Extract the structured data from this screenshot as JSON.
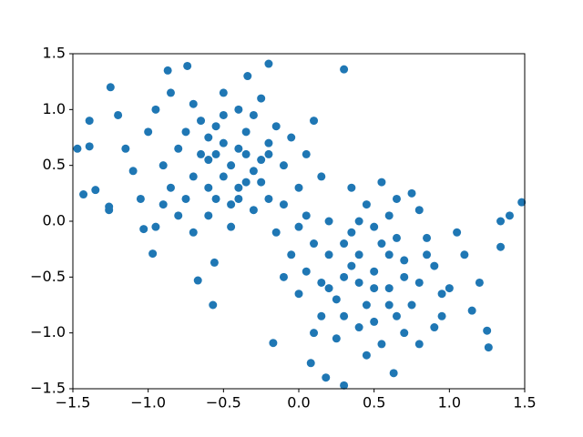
{
  "chart_data": {
    "type": "scatter",
    "color": "#1f77b4",
    "x": [
      -1.47,
      -1.39,
      -1.43,
      -1.35,
      -1.39,
      -1.25,
      -0.87,
      -0.74,
      -0.2,
      0.3,
      -0.34,
      1.48,
      1.4,
      1.34,
      1.34,
      1.25,
      1.26,
      0.3,
      0.18,
      0.63,
      0.08,
      -0.57,
      -0.17,
      -0.56,
      -0.67,
      -0.97,
      -1.03,
      -1.26,
      -1.26,
      -0.45,
      -0.6,
      -0.3,
      -0.5,
      -0.4,
      -0.7,
      -0.2,
      -0.55,
      -0.35,
      -0.8,
      -0.65,
      -0.25,
      -0.1,
      -0.9,
      -0.5,
      -0.75,
      -0.3,
      -0.6,
      -0.4,
      -1.0,
      -1.1,
      -0.85,
      -0.15,
      0.0,
      -0.05,
      -0.7,
      -0.95,
      -0.45,
      -0.2,
      -0.6,
      -0.35,
      -0.5,
      -0.8,
      -1.05,
      -0.25,
      -0.1,
      0.05,
      -0.65,
      -0.4,
      -0.55,
      -0.3,
      -0.75,
      -0.9,
      -1.15,
      -0.45,
      0.1,
      0.15,
      -0.15,
      -0.35,
      -0.6,
      -0.5,
      -0.85,
      -1.2,
      -0.2,
      -0.7,
      0.05,
      -0.95,
      -0.4,
      -0.25,
      -0.55,
      0.5,
      0.4,
      0.6,
      0.3,
      0.7,
      0.55,
      0.45,
      0.8,
      0.2,
      0.65,
      0.35,
      0.9,
      0.25,
      0.5,
      0.75,
      0.15,
      1.0,
      0.6,
      0.4,
      0.85,
      0.1,
      0.3,
      0.7,
      0.95,
      0.45,
      0.2,
      0.05,
      1.1,
      0.55,
      0.25,
      0.8,
      0.35,
      0.6,
      0.5,
      0.4,
      0.7,
      0.65,
      0.15,
      0.0,
      0.9,
      1.05,
      1.2,
      0.8,
      0.35,
      0.55,
      0.75,
      -0.05,
      0.1,
      0.45,
      0.95,
      0.3,
      0.6,
      0.2,
      0.85,
      0.5,
      1.15,
      0.0,
      -0.1,
      0.65,
      0.4
    ],
    "values": [
      0.65,
      0.67,
      0.24,
      0.28,
      0.9,
      1.2,
      1.35,
      1.39,
      1.41,
      1.36,
      1.3,
      0.17,
      0.05,
      0,
      -0.23,
      -0.98,
      -1.13,
      -1.47,
      -1.4,
      -1.36,
      -1.27,
      -0.75,
      -1.09,
      -0.37,
      -0.53,
      -0.29,
      -0.07,
      0.1,
      0.13,
      0.5,
      0.55,
      0.45,
      0.7,
      0.3,
      0.4,
      0.6,
      0.2,
      0.8,
      0.65,
      0.9,
      0.35,
      0.5,
      0.5,
      0.95,
      0.2,
      0.1,
      0.05,
      1.0,
      0.8,
      0.45,
      0.3,
      0.85,
      0.3,
      0.75,
      1.05,
      1.0,
      0.15,
      0.2,
      0.75,
      0.6,
      0.4,
      0.05,
      0.2,
      1.1,
      0.15,
      0.6,
      0.6,
      0.65,
      0.85,
      0.95,
      0.8,
      0.15,
      0.65,
      -0.05,
      0.9,
      0.4,
      -0.1,
      0.35,
      0.3,
      1.15,
      1.15,
      0.95,
      0.7,
      -0.1,
      0.05,
      -0.05,
      0.2,
      0.55,
      0.6,
      -0.45,
      -0.3,
      -0.6,
      -0.5,
      -0.35,
      -0.2,
      -0.75,
      -0.55,
      -0.3,
      -0.85,
      -0.1,
      -0.4,
      -0.7,
      -0.05,
      -0.75,
      -0.55,
      -0.6,
      0.05,
      -0.95,
      -0.15,
      -0.2,
      -0.85,
      -1.0,
      -0.85,
      0.15,
      0.0,
      -0.45,
      -0.3,
      -1.1,
      -1.05,
      0.1,
      -0.4,
      -0.3,
      -0.6,
      -0.55,
      -0.5,
      -0.15,
      -0.85,
      -0.65,
      -0.95,
      -0.1,
      -0.55,
      -1.1,
      0.3,
      0.35,
      0.25,
      -0.3,
      -1.0,
      -1.2,
      -0.65,
      -0.2,
      -0.75,
      -0.6,
      -0.3,
      -0.9,
      -0.8,
      -0.05,
      -0.5,
      0.2,
      0.0
    ],
    "xlim": [
      -1.5,
      1.5
    ],
    "ylim": [
      -1.5,
      1.5
    ],
    "xticks": [
      {
        "value": -1.5,
        "label": "−1.5"
      },
      {
        "value": -1.0,
        "label": "−1.0"
      },
      {
        "value": -0.5,
        "label": "−0.5"
      },
      {
        "value": 0,
        "label": "0.0"
      },
      0.5,
      {
        "value": 1.0,
        "label": "1.0"
      },
      1.5
    ],
    "yticks": [
      {
        "value": -1.5,
        "label": "−1.5"
      },
      {
        "value": -1.0,
        "label": "−1.0"
      },
      {
        "value": -0.5,
        "label": "−0.5"
      },
      {
        "value": 0,
        "label": "0.0"
      },
      0.5,
      {
        "value": 1.0,
        "label": "1.0"
      },
      1.5
    ],
    "grid": false
  }
}
